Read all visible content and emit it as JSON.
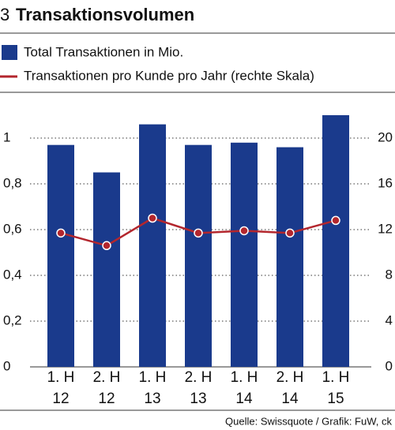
{
  "chart_data": {
    "type": "bar_line",
    "number": "3",
    "title": "Transaktionsvolumen",
    "categories": [
      "1. H\n12",
      "2. H\n12",
      "1. H\n13",
      "2. H\n13",
      "1. H\n14",
      "2. H\n14",
      "1. H\n15"
    ],
    "series": [
      {
        "name": "Total Transaktionen in Mio.",
        "type": "bar",
        "color": "#1a3a8c",
        "values": [
          0.97,
          0.85,
          1.06,
          0.97,
          0.98,
          0.96,
          1.1
        ]
      },
      {
        "name": "Transaktionen pro Kunde pro Jahr (rechte Skala)",
        "type": "line",
        "axis": "y2",
        "color": "#b3262d",
        "values": [
          11.7,
          10.6,
          13.0,
          11.7,
          11.9,
          11.7,
          12.8
        ]
      }
    ],
    "ylim": [
      0,
      1.2
    ],
    "yticks": [
      0,
      {
        "value": 0.2,
        "label": "0,2"
      },
      {
        "value": 0.4,
        "label": "0,4"
      },
      {
        "value": 0.6,
        "label": "0,6"
      },
      {
        "value": 0.8,
        "label": "0,8"
      },
      1
    ],
    "y2lim": [
      0,
      24
    ],
    "y2ticks": [
      0,
      4,
      8,
      12,
      16,
      20
    ],
    "grid": true,
    "source": "Quelle: Swissquote / Grafik: FuW, ck"
  }
}
